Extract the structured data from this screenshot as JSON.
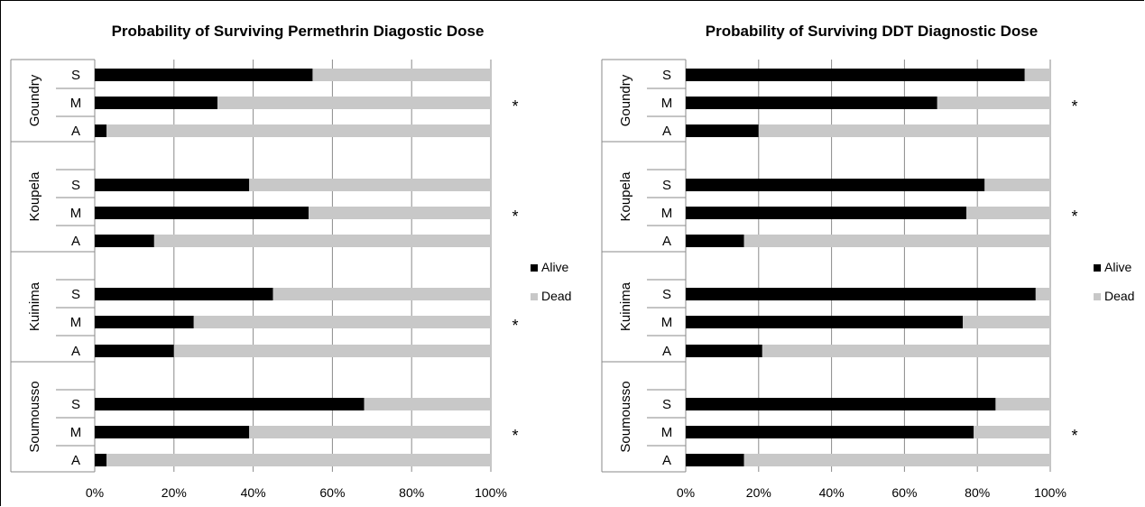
{
  "chart_data": [
    {
      "type": "bar",
      "stacked": true,
      "orientation": "horizontal",
      "title": "Probability of Surviving Permethrin Diagostic Dose",
      "xlim": [
        0,
        100
      ],
      "x_ticks": [
        "0%",
        "20%",
        "40%",
        "60%",
        "80%",
        "100%"
      ],
      "grid": true,
      "legend": "right",
      "groups": [
        {
          "name": "Goundry",
          "categories": [
            "S",
            "M",
            "A"
          ],
          "alive": [
            55,
            31,
            3
          ],
          "dead": [
            45,
            69,
            97
          ],
          "significant": true
        },
        {
          "name": "Koupela",
          "categories": [
            "S",
            "M",
            "A"
          ],
          "alive": [
            39,
            54,
            15
          ],
          "dead": [
            61,
            46,
            85
          ],
          "significant": true
        },
        {
          "name": "Kuinima",
          "categories": [
            "S",
            "M",
            "A"
          ],
          "alive": [
            45,
            25,
            20
          ],
          "dead": [
            55,
            75,
            80
          ],
          "significant": true
        },
        {
          "name": "Soumousso",
          "categories": [
            "S",
            "M",
            "A"
          ],
          "alive": [
            68,
            39,
            3
          ],
          "dead": [
            32,
            61,
            97
          ],
          "significant": true
        }
      ],
      "series": [
        {
          "name": "Alive",
          "color": "#000000"
        },
        {
          "name": "Dead",
          "color": "#c8c8c8"
        }
      ],
      "annotation_symbol": "*"
    },
    {
      "type": "bar",
      "stacked": true,
      "orientation": "horizontal",
      "title": "Probability of Surviving DDT Diagnostic Dose",
      "xlim": [
        0,
        100
      ],
      "x_ticks": [
        "0%",
        "20%",
        "40%",
        "60%",
        "80%",
        "100%"
      ],
      "grid": true,
      "legend": "right",
      "groups": [
        {
          "name": "Goundry",
          "categories": [
            "S",
            "M",
            "A"
          ],
          "alive": [
            93,
            69,
            20
          ],
          "dead": [
            7,
            31,
            80
          ],
          "significant": true
        },
        {
          "name": "Koupela",
          "categories": [
            "S",
            "M",
            "A"
          ],
          "alive": [
            82,
            77,
            16
          ],
          "dead": [
            18,
            23,
            84
          ],
          "significant": true
        },
        {
          "name": "Kuinima",
          "categories": [
            "S",
            "M",
            "A"
          ],
          "alive": [
            96,
            76,
            21
          ],
          "dead": [
            4,
            24,
            79
          ],
          "significant": false
        },
        {
          "name": "Soumousso",
          "categories": [
            "S",
            "M",
            "A"
          ],
          "alive": [
            85,
            79,
            16
          ],
          "dead": [
            15,
            21,
            84
          ],
          "significant": true
        }
      ],
      "series": [
        {
          "name": "Alive",
          "color": "#000000"
        },
        {
          "name": "Dead",
          "color": "#c8c8c8"
        }
      ],
      "annotation_symbol": "*"
    }
  ]
}
